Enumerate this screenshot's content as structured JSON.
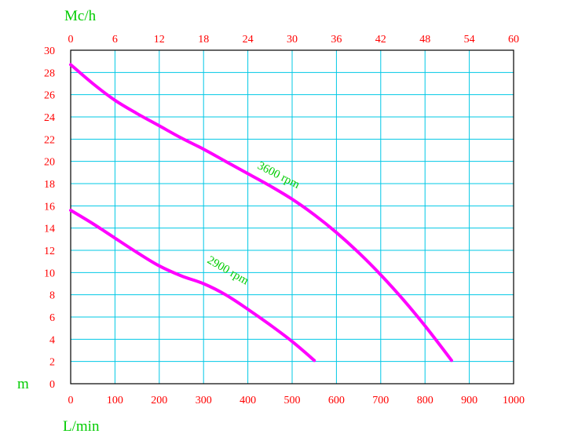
{
  "chart_data": {
    "type": "line",
    "title": "",
    "colors": {
      "tick_labels": "#ff0000",
      "unit_labels": "#00cc00",
      "grid": "#00c8e6",
      "frame": "#000000",
      "series": "#ff00ff",
      "series_labels": "#00cc00"
    },
    "x_axis": {
      "label": "L/min",
      "range": [
        0,
        1000
      ],
      "ticks": [
        "0",
        "100",
        "200",
        "300",
        "400",
        "500",
        "600",
        "700",
        "800",
        "900",
        "1000"
      ]
    },
    "x2_axis": {
      "label": "Mc/h",
      "range": [
        0,
        60
      ],
      "ticks": [
        "0",
        "6",
        "12",
        "18",
        "24",
        "30",
        "36",
        "42",
        "48",
        "54",
        "60"
      ]
    },
    "y_axis": {
      "label": "m",
      "range": [
        0,
        30
      ],
      "ticks": [
        "0",
        "2",
        "4",
        "6",
        "8",
        "10",
        "12",
        "14",
        "16",
        "18",
        "20",
        "22",
        "24",
        "26",
        "28",
        "30"
      ]
    },
    "grid": true,
    "series": [
      {
        "name": "3600 rpm",
        "x": [
          0,
          50,
          100,
          150,
          200,
          250,
          300,
          350,
          400,
          450,
          500,
          550,
          600,
          650,
          700,
          750,
          800,
          860
        ],
        "y": [
          28.7,
          27.0,
          25.5,
          24.3,
          23.2,
          22.1,
          21.1,
          20.0,
          18.9,
          17.8,
          16.6,
          15.2,
          13.6,
          11.8,
          9.8,
          7.6,
          5.2,
          2.1
        ]
      },
      {
        "name": "2900 rpm",
        "x": [
          0,
          50,
          100,
          150,
          200,
          250,
          300,
          350,
          400,
          450,
          500,
          550
        ],
        "y": [
          15.6,
          14.4,
          13.1,
          11.8,
          10.6,
          9.7,
          9.0,
          8.0,
          6.7,
          5.3,
          3.8,
          2.1
        ]
      }
    ]
  }
}
